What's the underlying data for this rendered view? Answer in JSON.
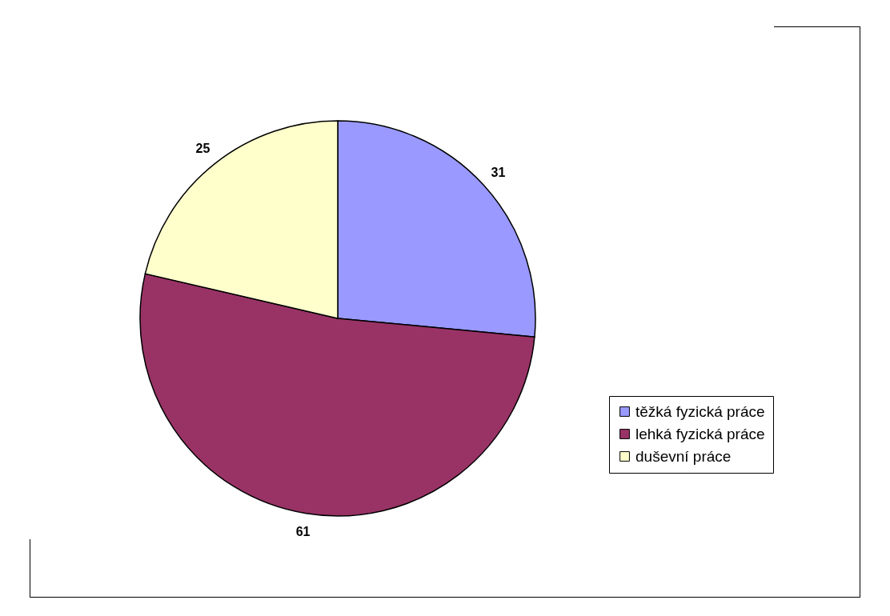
{
  "chart_data": {
    "type": "pie",
    "categories": [
      "těžká fyzická práce",
      "lehká fyzická práce",
      "duševní práce"
    ],
    "values": [
      31,
      61,
      25
    ],
    "colors": [
      "#9999ff",
      "#993366",
      "#ffffcc"
    ],
    "data_labels": true,
    "legend": "right"
  }
}
